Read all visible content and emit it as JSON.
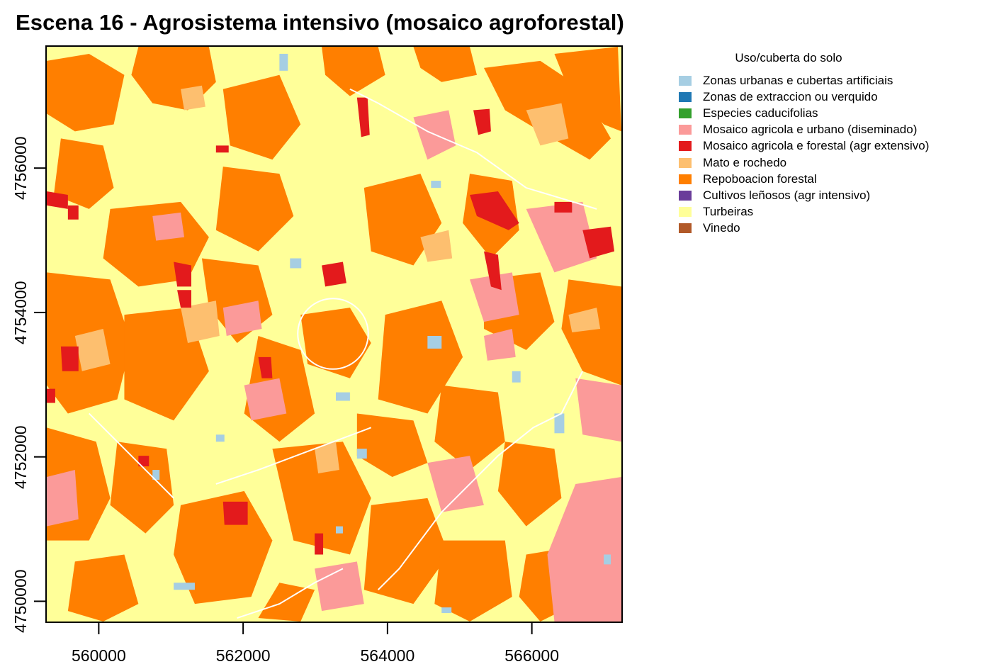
{
  "title": "Escena 16 - Agrosistema intensivo (mosaico agroforestal)",
  "x_axis": {
    "ticks": [
      "560000",
      "562000",
      "564000",
      "566000"
    ],
    "range": [
      559260,
      567260
    ]
  },
  "y_axis": {
    "ticks": [
      "4750000",
      "4752000",
      "4754000",
      "4756000"
    ],
    "range": [
      4749700,
      4757700
    ]
  },
  "legend": {
    "title": "Uso/cuberta do solo",
    "items": [
      {
        "label": "Zonas urbanas e cubertas artificiais",
        "color": "#a6cee3"
      },
      {
        "label": "Zonas de extraccion ou verquido",
        "color": "#1f78b4"
      },
      {
        "label": "Especies caducifolias",
        "color": "#33a02c"
      },
      {
        "label": "Mosaico agricola e urbano (diseminado)",
        "color": "#fb9a99"
      },
      {
        "label": "Mosaico agricola e forestal (agr extensivo)",
        "color": "#e31a1c"
      },
      {
        "label": "Mato e rochedo",
        "color": "#fdbf6f"
      },
      {
        "label": "Repoboacion forestal",
        "color": "#ff7f00"
      },
      {
        "label": "Cultivos leñosos (agr intensivo)",
        "color": "#6a3d9a"
      },
      {
        "label": "Turbeiras",
        "color": "#ffff99"
      },
      {
        "label": "Vinedo",
        "color": "#b15928"
      }
    ]
  }
}
